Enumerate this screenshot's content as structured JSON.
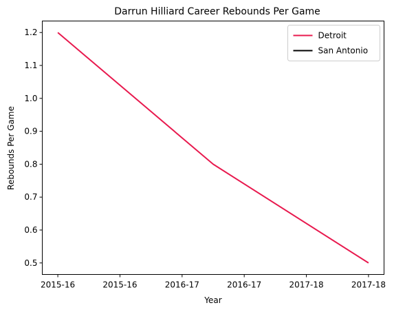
{
  "chart_data": {
    "type": "line",
    "title": "Darrun Hilliard Career Rebounds Per Game",
    "xlabel": "Year",
    "ylabel": "Rebounds Per Game",
    "x_tick_labels": [
      "2015-16",
      "2015-16",
      "2016-17",
      "2016-17",
      "2017-18",
      "2017-18"
    ],
    "x_range": [
      -0.25,
      5.25
    ],
    "y_ticks": [
      0.5,
      0.6,
      0.7,
      0.8,
      0.9,
      1.0,
      1.1,
      1.2
    ],
    "y_tick_labels": [
      "0.5",
      "0.6",
      "0.7",
      "0.8",
      "0.9",
      "1.0",
      "1.1",
      "1.2"
    ],
    "ylim": [
      0.465,
      1.235
    ],
    "grid": false,
    "legend_position": "top-right",
    "series": [
      {
        "name": "Detroit",
        "color": "#e8194e",
        "x": [
          0,
          2.5,
          5
        ],
        "y": [
          1.2,
          0.8,
          0.5
        ]
      },
      {
        "name": "San Antonio",
        "color": "#000000",
        "x": [],
        "y": []
      }
    ]
  }
}
